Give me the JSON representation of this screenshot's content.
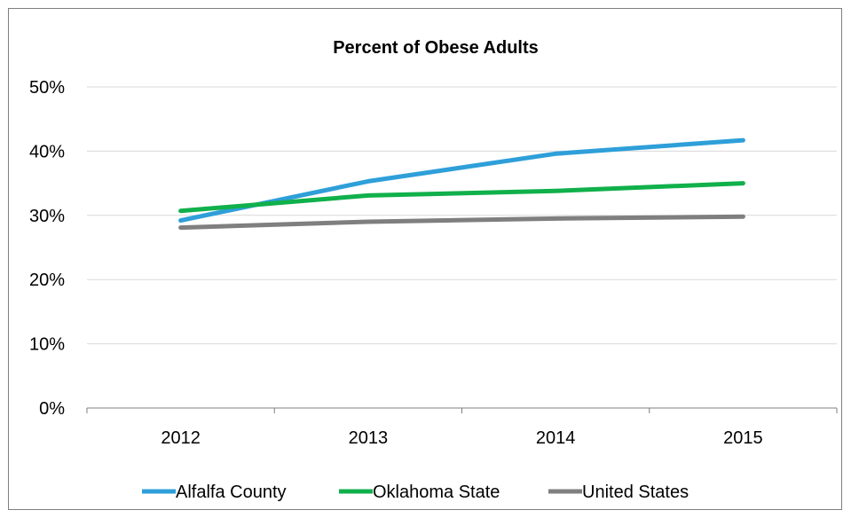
{
  "chart_data": {
    "type": "line",
    "title": "Percent of Obese Adults",
    "xlabel": "",
    "ylabel": "",
    "categories": [
      "2012",
      "2013",
      "2014",
      "2015"
    ],
    "y_ticks": [
      "0%",
      "10%",
      "20%",
      "30%",
      "40%",
      "50%"
    ],
    "ylim": [
      0,
      50
    ],
    "grid": true,
    "legend_position": "bottom",
    "series": [
      {
        "name": "Alfalfa County",
        "color": "#2e9fd9",
        "values": [
          29.2,
          35.3,
          39.6,
          41.7
        ]
      },
      {
        "name": "Oklahoma State",
        "color": "#10b04b",
        "values": [
          30.7,
          33.1,
          33.8,
          35.0
        ]
      },
      {
        "name": "United States",
        "color": "#7f7f7f",
        "values": [
          28.1,
          29.0,
          29.5,
          29.8
        ]
      }
    ]
  }
}
